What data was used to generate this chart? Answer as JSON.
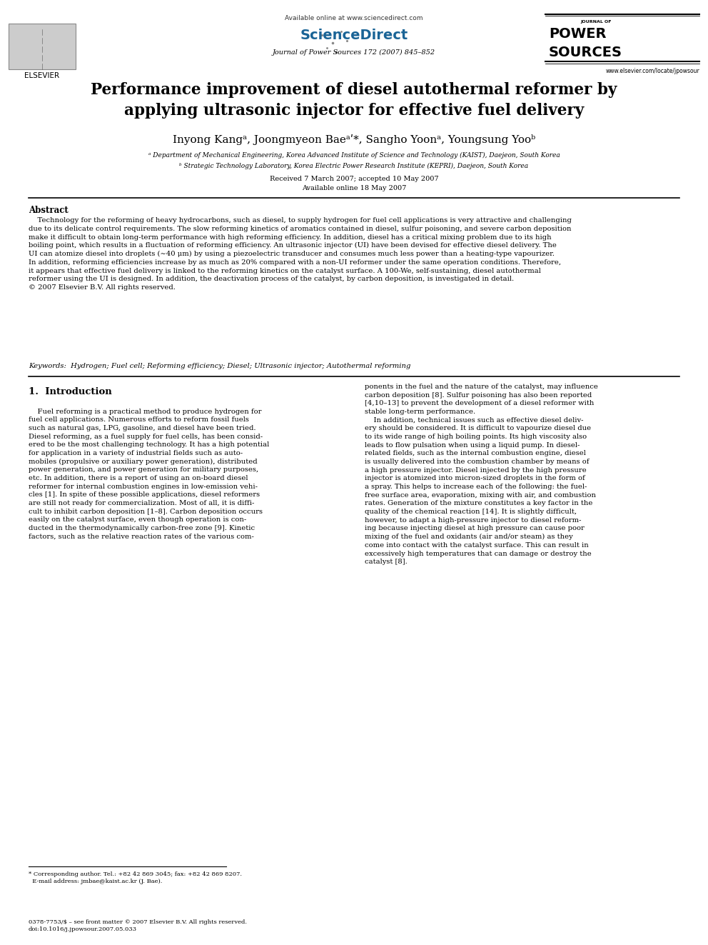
{
  "bg_color": "#ffffff",
  "page_width": 9.92,
  "page_height": 13.23,
  "header": {
    "available_online": "Available online at www.sciencedirect.com",
    "journal_name": "Journal of Power Sources 172 (2007) 845–852",
    "journal_url": "www.elsevier.com/locate/jpowsour"
  },
  "title": "Performance improvement of diesel autothermal reformer by\napplying ultrasonic injector for effective fuel delivery",
  "authors": "Inyong Kangᵃ, Joongmyeon Baeᵃʹ*, Sangho Yoonᵃ, Youngsung Yooᵇ",
  "affil_a": "ᵃ Department of Mechanical Engineering, Korea Advanced Institute of Science and Technology (KAIST), Daejeon, South Korea",
  "affil_b": "ᵇ Strategic Technology Laboratory, Korea Electric Power Research Institute (KEPRI), Daejeon, South Korea",
  "received": "Received 7 March 2007; accepted 10 May 2007",
  "available": "Available online 18 May 2007",
  "abstract_title": "Abstract",
  "abstract_text": "    Technology for the reforming of heavy hydrocarbons, such as diesel, to supply hydrogen for fuel cell applications is very attractive and challenging\ndue to its delicate control requirements. The slow reforming kinetics of aromatics contained in diesel, sulfur poisoning, and severe carbon deposition\nmake it difficult to obtain long-term performance with high reforming efficiency. In addition, diesel has a critical mixing problem due to its high\nboiling point, which results in a fluctuation of reforming efficiency. An ultrasonic injector (UI) have been devised for effective diesel delivery. The\nUI can atomize diesel into droplets (∼40 μm) by using a piezoelectric transducer and consumes much less power than a heating-type vapourizer.\nIn addition, reforming efficiencies increase by as much as 20% compared with a non-UI reformer under the same operation conditions. Therefore,\nit appears that effective fuel delivery is linked to the reforming kinetics on the catalyst surface. A 100-We, self-sustaining, diesel autothermal\nreformer using the UI is designed. In addition, the deactivation process of the catalyst, by carbon deposition, is investigated in detail.\n© 2007 Elsevier B.V. All rights reserved.",
  "keywords": "Keywords:  Hydrogen; Fuel cell; Reforming efficiency; Diesel; Ultrasonic injector; Autothermal reforming",
  "section1_title": "1.  Introduction",
  "intro_col1": "    Fuel reforming is a practical method to produce hydrogen for\nfuel cell applications. Numerous efforts to reform fossil fuels\nsuch as natural gas, LPG, gasoline, and diesel have been tried.\nDiesel reforming, as a fuel supply for fuel cells, has been consid-\nered to be the most challenging technology. It has a high potential\nfor application in a variety of industrial fields such as auto-\nmobiles (propulsive or auxiliary power generation), distributed\npower generation, and power generation for military purposes,\netc. In addition, there is a report of using an on-board diesel\nreformer for internal combustion engines in low-emission vehi-\ncles [1]. In spite of these possible applications, diesel reformers\nare still not ready for commercialization. Most of all, it is diffi-\ncult to inhibit carbon deposition [1–8]. Carbon deposition occurs\neasily on the catalyst surface, even though operation is con-\nducted in the thermodynamically carbon-free zone [9]. Kinetic\nfactors, such as the relative reaction rates of the various com-",
  "intro_col2": "ponents in the fuel and the nature of the catalyst, may influence\ncarbon deposition [8]. Sulfur poisoning has also been reported\n[4,10–13] to prevent the development of a diesel reformer with\nstable long-term performance.\n    In addition, technical issues such as effective diesel deliv-\nery should be considered. It is difficult to vapourize diesel due\nto its wide range of high boiling points. Its high viscosity also\nleads to flow pulsation when using a liquid pump. In diesel-\nrelated fields, such as the internal combustion engine, diesel\nis usually delivered into the combustion chamber by means of\na high pressure injector. Diesel injected by the high pressure\ninjector is atomized into micron-sized droplets in the form of\na spray. This helps to increase each of the following: the fuel-\nfree surface area, evaporation, mixing with air, and combustion\nrates. Generation of the mixture constitutes a key factor in the\nquality of the chemical reaction [14]. It is slightly difficult,\nhowever, to adapt a high-pressure injector to diesel reform-\ning because injecting diesel at high pressure can cause poor\nmixing of the fuel and oxidants (air and/or steam) as they\ncome into contact with the catalyst surface. This can result in\nexcessively high temperatures that can damage or destroy the\ncatalyst [8].",
  "footer_left": "0378-7753/$ – see front matter © 2007 Elsevier B.V. All rights reserved.\ndoi:10.1016/j.jpowsour.2007.05.033",
  "footnote": "* Corresponding author. Tel.: +82 42 869 3045; fax: +82 42 869 8207.\n  E-mail address: jmbae@kaist.ac.kr (J. Bae).",
  "elsevier_text": "ELSEVIER",
  "journal_of": "JOURNAL OF",
  "power": "POWER",
  "sources": "SOURCES",
  "sciencedirect": "ScienceDirect"
}
